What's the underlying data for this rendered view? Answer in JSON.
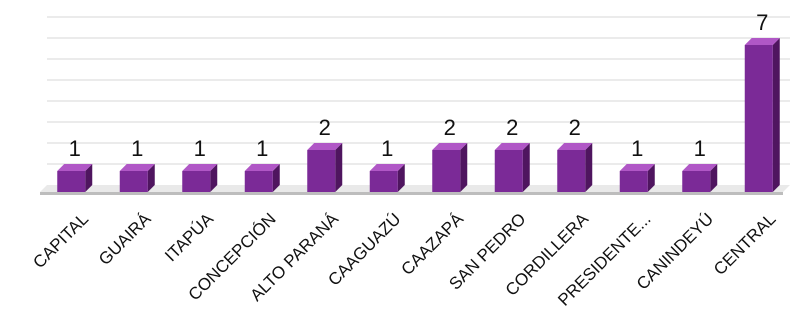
{
  "chart_data": {
    "type": "bar",
    "categories": [
      "CAPITAL",
      "GUAIRÁ",
      "ITAPÚA",
      "CONCEPCIÓN",
      "ALTO PARANÁ",
      "CAAGUAZÚ",
      "CAAZAPÁ",
      "SAN PEDRO",
      "CORDILLERA",
      "PRESIDENTE...",
      "CANINDEYÚ",
      "CENTRAL"
    ],
    "values": [
      1,
      1,
      1,
      1,
      2,
      1,
      2,
      2,
      2,
      1,
      1,
      7
    ],
    "title": "",
    "xlabel": "",
    "ylabel": "",
    "ylim": [
      0,
      8
    ],
    "grid": true,
    "legend": "none",
    "colors": {
      "bar_front": "#7b2a97",
      "bar_side": "#4f155f",
      "bar_top": "#b057c6"
    }
  }
}
